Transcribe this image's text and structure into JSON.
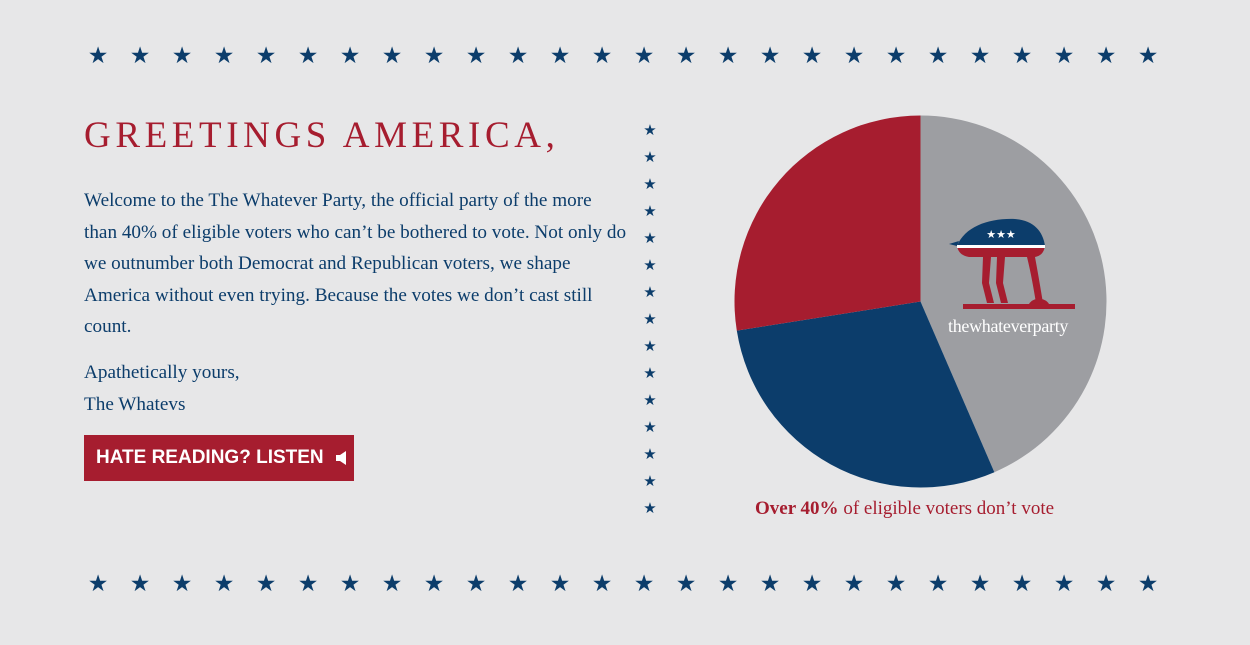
{
  "colors": {
    "background": "#e7e7e8",
    "red": "#a61d2f",
    "navy": "#0c3d6b",
    "gray": "#9d9ea2",
    "white": "#ffffff"
  },
  "star_glyph": "★",
  "top_star_row_count": 26,
  "bottom_star_row_count": 26,
  "divider_star_count": 15,
  "heading": "GREETINGS AMERICA,",
  "intro_paragraph": "Welcome to the The Whatever Party, the official party of the more than 40% of eligible voters who can’t be bothered to vote. Not only do we outnumber both Democrat and Republican voters, we shape America without even trying. Because the votes we don’t cast still count.",
  "signoff": {
    "line1": "Apathetically yours,",
    "line2": "The Whatevs"
  },
  "listen_button": {
    "label": "HATE READING? LISTEN",
    "icon": "speaker-icon"
  },
  "logo": {
    "text": "thewhateverparty",
    "icon": "ostrich-mascot-icon",
    "stars": "★★★"
  },
  "caption": {
    "bold": "Over 40%",
    "rest": " of eligible voters don’t vote"
  },
  "chart_data": {
    "type": "pie",
    "title": "",
    "slices": [
      {
        "value": 43.5,
        "color": "#9d9ea2"
      },
      {
        "value": 29.0,
        "color": "#0c3d6b"
      },
      {
        "value": 27.5,
        "color": "#a61d2f"
      }
    ]
  }
}
